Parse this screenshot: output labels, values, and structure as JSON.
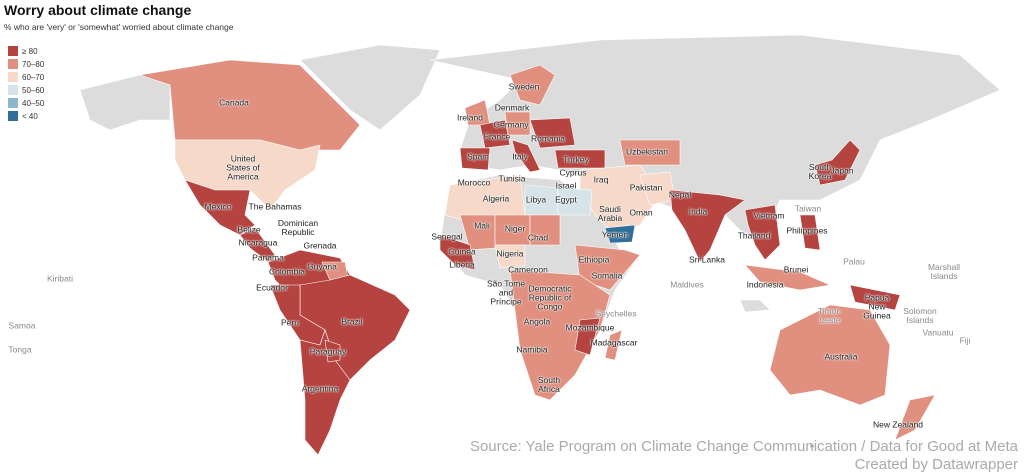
{
  "title": "Worry about climate change",
  "subtitle": "% who are 'very' or 'somewhat' worried about climate change",
  "legend": [
    {
      "label": "≥ 80",
      "color": "#b5433f"
    },
    {
      "label": "70–80",
      "color": "#e1907f"
    },
    {
      "label": "60–70",
      "color": "#f6d9c9"
    },
    {
      "label": "50–60",
      "color": "#d6e4ea"
    },
    {
      "label": "40–50",
      "color": "#8db6cf"
    },
    {
      "label": "< 40",
      "color": "#2f6f9a"
    }
  ],
  "labels": [
    {
      "text": "Canada",
      "bin": 1
    },
    {
      "text": "United States of America",
      "bin": 2
    },
    {
      "text": "Mexico",
      "bin": 0
    },
    {
      "text": "The Bahamas"
    },
    {
      "text": "Dominican Republic"
    },
    {
      "text": "Belize"
    },
    {
      "text": "Nicaragua",
      "bin": 0
    },
    {
      "text": "Grenada"
    },
    {
      "text": "Panama"
    },
    {
      "text": "Colombia",
      "bin": 0
    },
    {
      "text": "Guyana",
      "bin": 1
    },
    {
      "text": "Ecuador"
    },
    {
      "text": "Peru",
      "bin": 0
    },
    {
      "text": "Brazil",
      "bin": 0
    },
    {
      "text": "Paraguay",
      "bin": 0
    },
    {
      "text": "Argentina",
      "bin": 0
    },
    {
      "text": "Kiribati"
    },
    {
      "text": "Samoa"
    },
    {
      "text": "Tonga"
    },
    {
      "text": "Sweden",
      "bin": 1
    },
    {
      "text": "Denmark"
    },
    {
      "text": "Ireland",
      "bin": 1
    },
    {
      "text": "Germany",
      "bin": 1
    },
    {
      "text": "France",
      "bin": 0
    },
    {
      "text": "Romania",
      "bin": 0
    },
    {
      "text": "Spain",
      "bin": 0
    },
    {
      "text": "Italy",
      "bin": 0
    },
    {
      "text": "Turkey",
      "bin": 0
    },
    {
      "text": "Cyprus"
    },
    {
      "text": "Israel"
    },
    {
      "text": "Uzbekistan",
      "bin": 1
    },
    {
      "text": "Morocco"
    },
    {
      "text": "Tunisia"
    },
    {
      "text": "Iraq"
    },
    {
      "text": "Algeria",
      "bin": 2
    },
    {
      "text": "Libya",
      "bin": 3
    },
    {
      "text": "Egypt",
      "bin": 3
    },
    {
      "text": "Pakistan",
      "bin": 2
    },
    {
      "text": "Nepal"
    },
    {
      "text": "India",
      "bin": 0
    },
    {
      "text": "Saudi Arabia",
      "bin": 2
    },
    {
      "text": "Oman"
    },
    {
      "text": "Yemen",
      "bin": 5
    },
    {
      "text": "Senegal"
    },
    {
      "text": "Mali",
      "bin": 1
    },
    {
      "text": "Niger",
      "bin": 1
    },
    {
      "text": "Chad",
      "bin": 1
    },
    {
      "text": "Guinea",
      "bin": 0
    },
    {
      "text": "Liberia"
    },
    {
      "text": "Nigeria",
      "bin": 2
    },
    {
      "text": "Cameroon"
    },
    {
      "text": "Ethiopia",
      "bin": 1
    },
    {
      "text": "Somalia"
    },
    {
      "text": "São Tomé and Príncipe"
    },
    {
      "text": "Democratic Republic of Congo",
      "bin": 1
    },
    {
      "text": "Maldives"
    },
    {
      "text": "Sri Lanka"
    },
    {
      "text": "Vietnam"
    },
    {
      "text": "Thailand",
      "bin": 0
    },
    {
      "text": "Philippines",
      "bin": 0
    },
    {
      "text": "Taiwan"
    },
    {
      "text": "South Korea"
    },
    {
      "text": "Japan",
      "bin": 0
    },
    {
      "text": "Palau"
    },
    {
      "text": "Brunei"
    },
    {
      "text": "Indonesia",
      "bin": 1
    },
    {
      "text": "Marshall Islands"
    },
    {
      "text": "Papua New Guinea",
      "bin": 0
    },
    {
      "text": "Solomon Islands"
    },
    {
      "text": "Timor-Leste"
    },
    {
      "text": "Vanuatu"
    },
    {
      "text": "Fiji"
    },
    {
      "text": "Angola"
    },
    {
      "text": "Mozambique",
      "bin": 0
    },
    {
      "text": "Seychelles"
    },
    {
      "text": "Madagascar",
      "bin": 1
    },
    {
      "text": "Namibia"
    },
    {
      "text": "South Africa"
    },
    {
      "text": "Australia",
      "bin": 1
    },
    {
      "text": "New Zealand",
      "bin": 1
    }
  ],
  "source": "Source: Yale Program on Climate Change Communication / Data for Good at Meta",
  "credit": "Created by Datawrapper"
}
